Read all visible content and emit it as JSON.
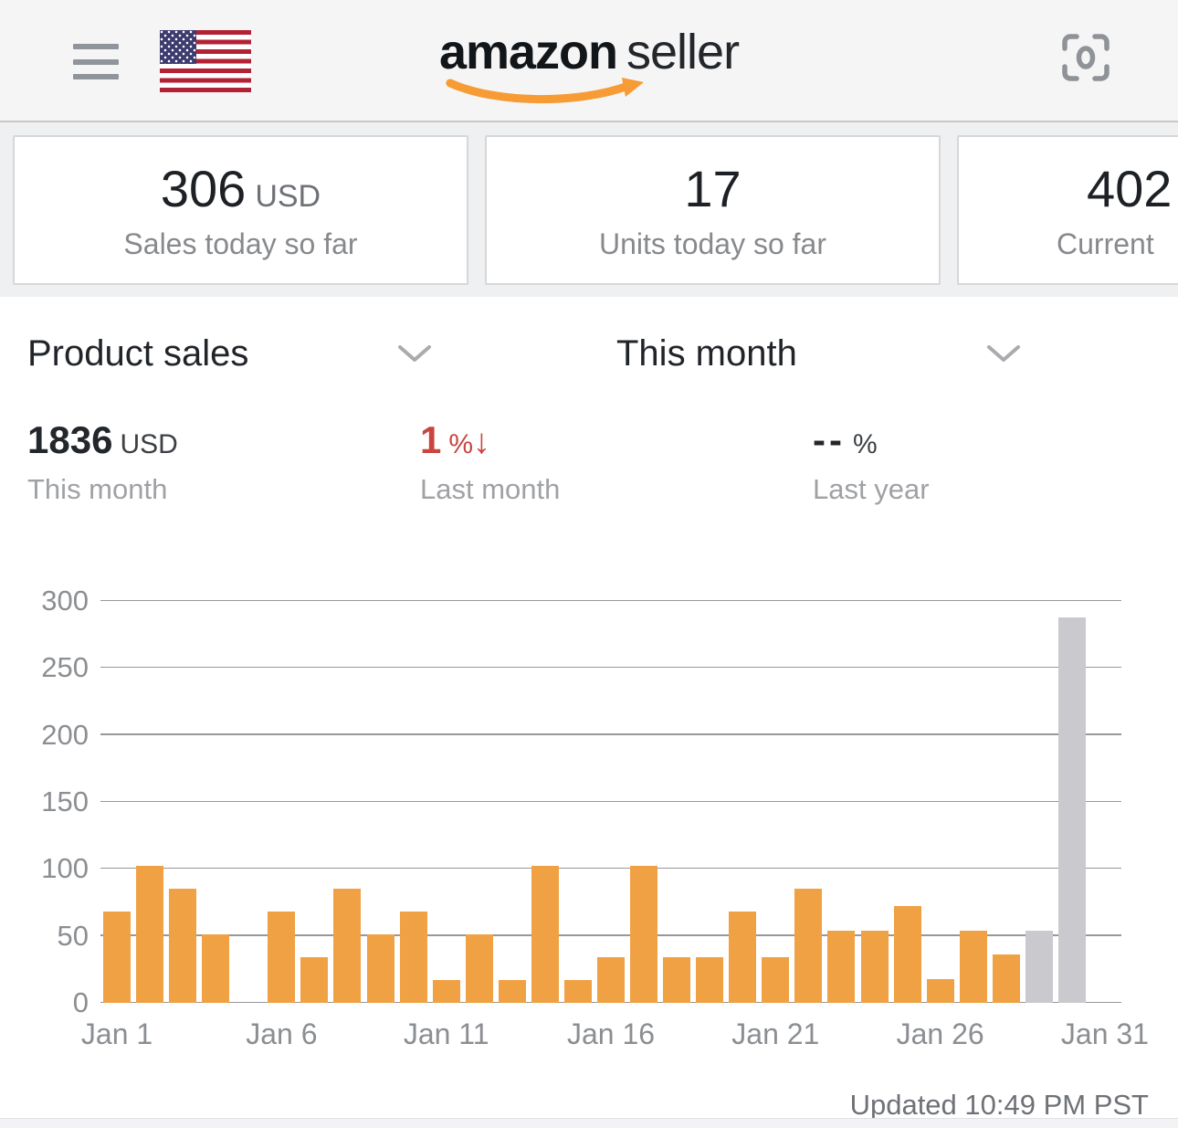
{
  "header": {
    "logo_primary": "amazon",
    "logo_secondary": "seller"
  },
  "summary_cards": [
    {
      "value": "306",
      "unit": "USD",
      "label": "Sales today so far"
    },
    {
      "value": "17",
      "unit": "",
      "label": "Units today so far"
    },
    {
      "value": "402",
      "unit": "",
      "label": "Current"
    }
  ],
  "filters": {
    "metric": "Product sales",
    "period": "This month"
  },
  "stats": [
    {
      "value": "1836",
      "unit": "USD",
      "label": "This month"
    },
    {
      "value": "1",
      "unit": "%",
      "arrow": "↓",
      "label": "Last month"
    },
    {
      "value": "--",
      "unit": "%",
      "label": "Last year"
    }
  ],
  "footer": {
    "updated": "Updated 10:49 PM PST"
  },
  "chart_data": {
    "type": "bar",
    "title": "",
    "xlabel": "",
    "ylabel": "",
    "categories": [
      "Jan 1",
      "Jan 2",
      "Jan 3",
      "Jan 4",
      "Jan 5",
      "Jan 6",
      "Jan 7",
      "Jan 8",
      "Jan 9",
      "Jan 10",
      "Jan 11",
      "Jan 12",
      "Jan 13",
      "Jan 14",
      "Jan 15",
      "Jan 16",
      "Jan 17",
      "Jan 18",
      "Jan 19",
      "Jan 20",
      "Jan 21",
      "Jan 22",
      "Jan 23",
      "Jan 24",
      "Jan 25",
      "Jan 26",
      "Jan 27",
      "Jan 28",
      "Jan 29",
      "Jan 30",
      "Jan 31"
    ],
    "values": [
      68,
      102,
      85,
      51,
      0,
      68,
      34,
      85,
      51,
      68,
      17,
      51,
      17,
      102,
      17,
      34,
      102,
      34,
      34,
      68,
      34,
      85,
      54,
      54,
      72,
      18,
      54,
      36,
      54,
      288,
      0
    ],
    "gray_days": [
      29,
      30
    ],
    "ylim": [
      0,
      300
    ],
    "yticks": [
      0,
      50,
      100,
      150,
      200,
      250,
      300
    ],
    "xticks": [
      {
        "day": 1,
        "label": "Jan 1"
      },
      {
        "day": 6,
        "label": "Jan 6"
      },
      {
        "day": 11,
        "label": "Jan 11"
      },
      {
        "day": 16,
        "label": "Jan 16"
      },
      {
        "day": 21,
        "label": "Jan 21"
      },
      {
        "day": 26,
        "label": "Jan 26"
      },
      {
        "day": 31,
        "label": "Jan 31"
      }
    ],
    "grid": true,
    "legend": false,
    "colors": {
      "bar": "#f0a144",
      "bar_muted": "#c9c9ce",
      "negative": "#c9453e"
    }
  }
}
